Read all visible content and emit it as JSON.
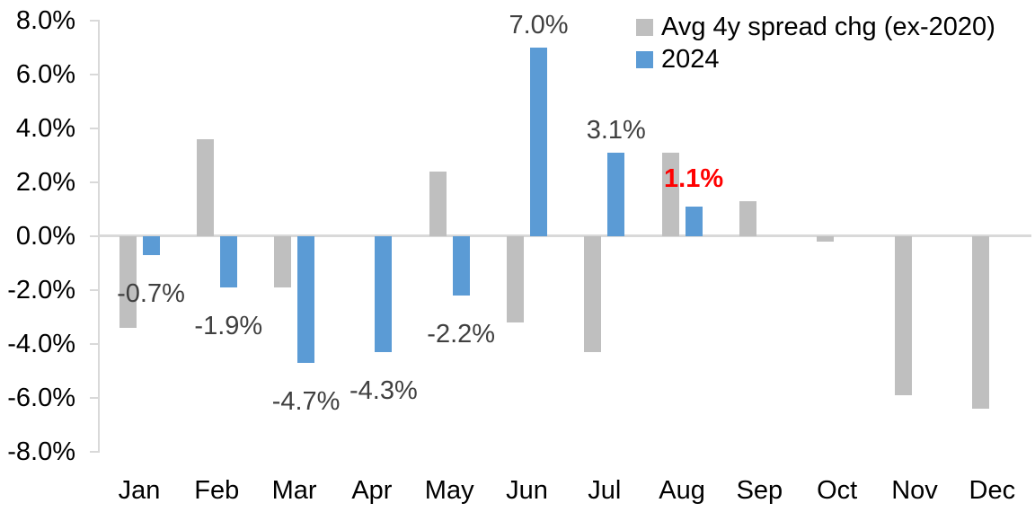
{
  "chart_data": {
    "type": "bar",
    "title": "",
    "xlabel": "",
    "ylabel": "",
    "categories": [
      "Jan",
      "Feb",
      "Mar",
      "Apr",
      "May",
      "Jun",
      "Jul",
      "Aug",
      "Sep",
      "Oct",
      "Nov",
      "Dec"
    ],
    "series": [
      {
        "name": "Avg 4y spread chg (ex-2020)",
        "color": "#BFBFBF",
        "values": [
          -3.4,
          3.6,
          -1.9,
          0.0,
          2.4,
          -3.2,
          -4.3,
          3.1,
          1.3,
          -0.2,
          -5.9,
          -6.4
        ]
      },
      {
        "name": "2024",
        "color": "#5B9BD5",
        "values": [
          -0.7,
          -1.9,
          -4.7,
          -4.3,
          -2.2,
          7.0,
          3.1,
          1.1,
          null,
          null,
          null,
          null
        ]
      }
    ],
    "data_labels": [
      {
        "month": "Jan",
        "text": "-0.7%",
        "color": "#404040",
        "bold": false
      },
      {
        "month": "Feb",
        "text": "-1.9%",
        "color": "#404040",
        "bold": false
      },
      {
        "month": "Mar",
        "text": "-4.7%",
        "color": "#404040",
        "bold": false
      },
      {
        "month": "Apr",
        "text": "-4.3%",
        "color": "#404040",
        "bold": false
      },
      {
        "month": "May",
        "text": "-2.2%",
        "color": "#404040",
        "bold": false
      },
      {
        "month": "Jun",
        "text": "7.0%",
        "color": "#404040",
        "bold": false
      },
      {
        "month": "Jul",
        "text": "3.1%",
        "color": "#404040",
        "bold": false
      },
      {
        "month": "Aug",
        "text": "1.1%",
        "color": "#FF0000",
        "bold": true
      }
    ],
    "y_axis": {
      "tick_labels": [
        "8.0%",
        "6.0%",
        "4.0%",
        "2.0%",
        "0.0%",
        "-2.0%",
        "-4.0%",
        "-6.0%",
        "-8.0%"
      ],
      "ylim": [
        -8,
        8
      ],
      "tick_step": 2,
      "unit": "%"
    },
    "grid": "none",
    "baseline": 0,
    "legend_position": "top-right",
    "colors": {
      "axis_line": "#D9D9D9",
      "axis_text": "#000000",
      "data_label_text": "#404040",
      "highlight_text": "#FF0000"
    }
  }
}
